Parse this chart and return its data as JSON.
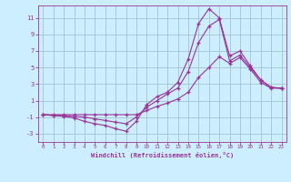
{
  "xlabel": "Windchill (Refroidissement éolien,°C)",
  "hours": [
    0,
    1,
    2,
    3,
    4,
    5,
    6,
    7,
    8,
    9,
    10,
    11,
    12,
    13,
    14,
    15,
    16,
    17,
    18,
    19,
    20,
    21,
    22,
    23
  ],
  "line1": [
    -0.7,
    -0.8,
    -0.9,
    -1.1,
    -1.5,
    -1.8,
    -2.0,
    -2.4,
    -2.7,
    -1.5,
    0.5,
    1.5,
    2.0,
    3.2,
    6.0,
    10.3,
    12.1,
    11.0,
    6.4,
    7.0,
    5.2,
    3.5,
    2.6,
    2.5
  ],
  "line2": [
    -0.7,
    -0.8,
    -0.8,
    -0.9,
    -1.0,
    -1.2,
    -1.4,
    -1.6,
    -1.8,
    -1.0,
    0.2,
    1.0,
    1.8,
    2.5,
    4.5,
    8.0,
    10.0,
    10.8,
    5.8,
    6.5,
    5.0,
    3.5,
    2.6,
    2.5
  ],
  "line3": [
    -0.7,
    -0.7,
    -0.7,
    -0.7,
    -0.7,
    -0.7,
    -0.7,
    -0.7,
    -0.7,
    -0.7,
    -0.2,
    0.3,
    0.7,
    1.2,
    2.0,
    3.8,
    5.0,
    6.3,
    5.5,
    6.2,
    4.8,
    3.2,
    2.5,
    2.5
  ],
  "bg_color": "#cceeff",
  "grid_color": "#99bbcc",
  "line_color": "#993399",
  "ylim": [
    -4,
    12.5
  ],
  "yticks": [
    -3,
    -1,
    1,
    3,
    5,
    7,
    9,
    11
  ],
  "xlim": [
    -0.5,
    23.5
  ],
  "xticks": [
    0,
    1,
    2,
    3,
    4,
    5,
    6,
    7,
    8,
    9,
    10,
    11,
    12,
    13,
    14,
    15,
    16,
    17,
    18,
    19,
    20,
    21,
    22,
    23
  ]
}
